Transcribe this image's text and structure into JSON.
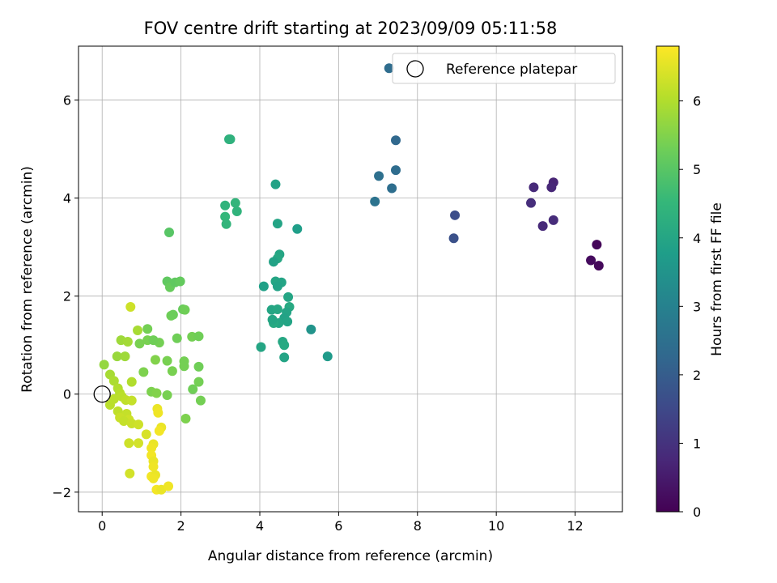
{
  "chart_data": {
    "type": "scatter",
    "title": "FOV centre drift starting at 2023/09/09 05:11:58",
    "xlabel": "Angular distance from reference (arcmin)",
    "ylabel": "Rotation from reference (arcmin)",
    "xlim": [
      -0.6,
      13.2
    ],
    "ylim": [
      -2.4,
      7.1
    ],
    "xticks": [
      0,
      2,
      4,
      6,
      8,
      10,
      12
    ],
    "yticks": [
      -2,
      0,
      2,
      4,
      6
    ],
    "xtick_labels": [
      "0",
      "2",
      "4",
      "6",
      "8",
      "10",
      "12"
    ],
    "ytick_labels": [
      "−2",
      "0",
      "2",
      "4",
      "6"
    ],
    "grid": true,
    "legend": {
      "position": "top-right",
      "entries": [
        "Reference platepar"
      ]
    },
    "reference_point": {
      "x": 0,
      "y": 0
    },
    "colorbar": {
      "label": "Hours from first FF file",
      "colormap": "viridis",
      "range": [
        0,
        6.8
      ],
      "ticks": [
        0,
        1,
        2,
        3,
        4,
        5,
        6
      ],
      "tick_labels": [
        "0",
        "1",
        "2",
        "3",
        "4",
        "5",
        "6"
      ]
    },
    "colormap_stops": [
      "#440154",
      "#482878",
      "#3e4989",
      "#31688e",
      "#26828e",
      "#1f9e89",
      "#35b779",
      "#6ece58",
      "#b5de2b",
      "#fde725"
    ],
    "points": [
      [
        12.55,
        3.05,
        0.1
      ],
      [
        12.4,
        2.73,
        0.2
      ],
      [
        12.6,
        2.62,
        0.15
      ],
      [
        11.45,
        4.32,
        0.7
      ],
      [
        11.4,
        4.22,
        0.75
      ],
      [
        10.95,
        4.22,
        0.8
      ],
      [
        10.88,
        3.9,
        0.9
      ],
      [
        11.45,
        3.55,
        0.85
      ],
      [
        11.18,
        3.43,
        0.8
      ],
      [
        8.95,
        3.65,
        1.6
      ],
      [
        8.92,
        3.18,
        1.7
      ],
      [
        7.28,
        6.65,
        2.4
      ],
      [
        7.45,
        5.18,
        2.3
      ],
      [
        7.45,
        4.57,
        2.4
      ],
      [
        7.02,
        4.45,
        2.5
      ],
      [
        7.35,
        4.2,
        2.45
      ],
      [
        6.92,
        3.93,
        2.6
      ],
      [
        5.3,
        1.32,
        3.5
      ],
      [
        5.72,
        0.77,
        3.7
      ],
      [
        4.95,
        3.37,
        3.8
      ],
      [
        4.4,
        4.28,
        3.9
      ],
      [
        4.45,
        3.48,
        3.95
      ],
      [
        4.5,
        2.85,
        4.0
      ],
      [
        4.45,
        2.77,
        4.05
      ],
      [
        4.35,
        2.7,
        3.9
      ],
      [
        4.4,
        2.3,
        4.0
      ],
      [
        4.55,
        2.28,
        3.95
      ],
      [
        4.45,
        2.2,
        3.9
      ],
      [
        4.1,
        2.2,
        3.85
      ],
      [
        4.72,
        1.98,
        4.0
      ],
      [
        4.75,
        1.78,
        4.1
      ],
      [
        4.68,
        1.67,
        3.95
      ],
      [
        4.3,
        1.72,
        4.0
      ],
      [
        4.45,
        1.73,
        4.05
      ],
      [
        4.62,
        1.55,
        3.9
      ],
      [
        4.7,
        1.48,
        3.95
      ],
      [
        4.48,
        1.45,
        4.0
      ],
      [
        4.35,
        1.45,
        4.1
      ],
      [
        4.32,
        1.52,
        4.0
      ],
      [
        4.58,
        1.07,
        4.05
      ],
      [
        4.62,
        1.0,
        4.1
      ],
      [
        4.03,
        0.96,
        4.0
      ],
      [
        4.62,
        0.75,
        3.95
      ],
      [
        3.22,
        5.2,
        4.3
      ],
      [
        3.25,
        5.2,
        4.35
      ],
      [
        3.12,
        3.85,
        4.4
      ],
      [
        3.38,
        3.9,
        4.45
      ],
      [
        3.42,
        3.73,
        4.4
      ],
      [
        3.12,
        3.62,
        4.5
      ],
      [
        3.15,
        3.47,
        4.45
      ],
      [
        1.7,
        3.3,
        5.0
      ],
      [
        1.65,
        2.3,
        5.1
      ],
      [
        1.72,
        2.18,
        5.2
      ],
      [
        1.85,
        2.28,
        5.1
      ],
      [
        1.98,
        2.3,
        5.15
      ],
      [
        1.75,
        1.6,
        5.3
      ],
      [
        1.8,
        1.62,
        5.25
      ],
      [
        2.05,
        1.73,
        5.2
      ],
      [
        2.1,
        1.72,
        5.3
      ],
      [
        1.9,
        1.14,
        5.3
      ],
      [
        1.45,
        1.05,
        5.35
      ],
      [
        1.15,
        1.1,
        5.4
      ],
      [
        1.3,
        1.1,
        5.3
      ],
      [
        1.15,
        1.33,
        5.35
      ],
      [
        0.95,
        1.03,
        5.4
      ],
      [
        2.28,
        1.17,
        5.35
      ],
      [
        2.45,
        1.18,
        5.3
      ],
      [
        1.65,
        0.68,
        5.4
      ],
      [
        2.08,
        0.67,
        5.35
      ],
      [
        1.35,
        0.7,
        5.5
      ],
      [
        1.05,
        0.45,
        5.45
      ],
      [
        1.78,
        0.47,
        5.4
      ],
      [
        2.08,
        0.57,
        5.35
      ],
      [
        2.45,
        0.56,
        5.3
      ],
      [
        2.45,
        0.25,
        5.35
      ],
      [
        2.3,
        0.1,
        5.3
      ],
      [
        1.25,
        0.05,
        5.45
      ],
      [
        1.38,
        0.02,
        5.5
      ],
      [
        1.65,
        -0.02,
        5.4
      ],
      [
        2.5,
        -0.13,
        5.35
      ],
      [
        2.12,
        -0.5,
        5.45
      ],
      [
        0.05,
        0.6,
        5.7
      ],
      [
        0.38,
        0.77,
        5.75
      ],
      [
        0.58,
        0.77,
        5.8
      ],
      [
        0.48,
        1.1,
        5.8
      ],
      [
        0.65,
        1.07,
        5.85
      ],
      [
        0.9,
        1.3,
        5.9
      ],
      [
        0.72,
        1.78,
        6.3
      ],
      [
        0.75,
        0.25,
        6.0
      ],
      [
        0.2,
        0.4,
        5.9
      ],
      [
        0.3,
        0.27,
        5.95
      ],
      [
        0.4,
        0.12,
        6.0
      ],
      [
        0.45,
        0.02,
        6.05
      ],
      [
        0.3,
        -0.1,
        6.1
      ],
      [
        0.5,
        -0.05,
        6.1
      ],
      [
        0.6,
        -0.12,
        6.15
      ],
      [
        0.75,
        -0.13,
        6.2
      ],
      [
        0.2,
        -0.22,
        6.1
      ],
      [
        0.4,
        -0.35,
        6.15
      ],
      [
        0.62,
        -0.4,
        6.2
      ],
      [
        0.45,
        -0.48,
        6.25
      ],
      [
        0.68,
        -0.52,
        6.3
      ],
      [
        0.55,
        -0.55,
        6.2
      ],
      [
        0.75,
        -0.6,
        6.25
      ],
      [
        0.92,
        -0.62,
        6.3
      ],
      [
        0.68,
        -1.0,
        6.3
      ],
      [
        0.92,
        -1.0,
        6.35
      ],
      [
        1.12,
        -0.82,
        6.4
      ],
      [
        0.7,
        -1.62,
        6.35
      ],
      [
        1.4,
        -0.3,
        6.6
      ],
      [
        1.42,
        -0.38,
        6.65
      ],
      [
        1.5,
        -0.68,
        6.6
      ],
      [
        1.45,
        -0.75,
        6.7
      ],
      [
        1.3,
        -1.02,
        6.6
      ],
      [
        1.25,
        -1.1,
        6.65
      ],
      [
        1.25,
        -1.25,
        6.7
      ],
      [
        1.3,
        -1.37,
        6.6
      ],
      [
        1.3,
        -1.48,
        6.65
      ],
      [
        1.25,
        -1.68,
        6.7
      ],
      [
        1.35,
        -1.65,
        6.6
      ],
      [
        1.3,
        -1.72,
        6.65
      ],
      [
        1.38,
        -1.95,
        6.7
      ],
      [
        1.5,
        -1.95,
        6.6
      ],
      [
        1.68,
        -1.88,
        6.65
      ]
    ]
  }
}
